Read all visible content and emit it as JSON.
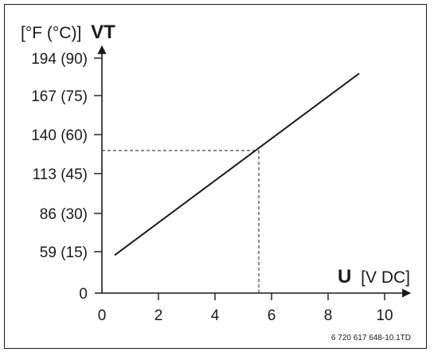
{
  "chart_data": {
    "type": "line",
    "y_axis": {
      "title_units": "[°F (°C)]",
      "title_symbol": "VT",
      "tick_labels": [
        "0",
        "59 (15)",
        "86 (30)",
        "113 (45)",
        "140 (60)",
        "167 (75)",
        "194 (90)"
      ],
      "tick_values": [
        0,
        59,
        86,
        113,
        140,
        167,
        194
      ]
    },
    "x_axis": {
      "title_symbol": "U",
      "title_units": "[V DC]",
      "tick_labels": [
        "0",
        "2",
        "4",
        "6",
        "8",
        "10"
      ],
      "tick_values": [
        0,
        2,
        4,
        6,
        8,
        10
      ]
    },
    "series": [
      {
        "x": [
          0.45,
          9.1
        ],
        "y": [
          54,
          183
        ]
      }
    ],
    "reference_point": {
      "x": 5.55,
      "y": 129
    },
    "reference_code": "6 720 617 648-10.1TD",
    "grid": false
  }
}
